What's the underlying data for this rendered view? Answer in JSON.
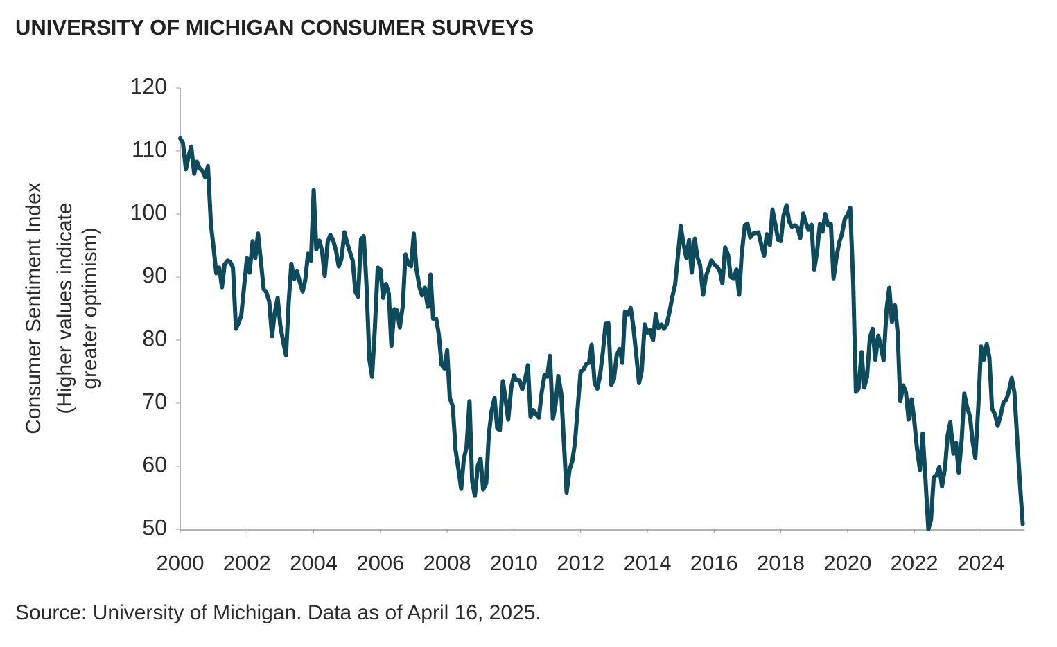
{
  "chart_data": {
    "type": "line",
    "title": "UNIVERSITY OF MICHIGAN CONSUMER SURVEYS",
    "y_label": [
      "Consumer Sentiment Index",
      "(Higher values indicate",
      "greater optimism)"
    ],
    "source": "Source: University of Michigan. Data as of April 16, 2025.",
    "xlim": [
      2000,
      2025.3
    ],
    "xticks": [
      2000,
      2002,
      2004,
      2006,
      2008,
      2010,
      2012,
      2014,
      2016,
      2018,
      2020,
      2022,
      2024
    ],
    "ylim": [
      50,
      120
    ],
    "yticks": [
      50,
      60,
      70,
      80,
      90,
      100,
      110,
      120
    ],
    "grid": false,
    "x": [
      2000,
      2000.08,
      2000.17,
      2000.25,
      2000.33,
      2000.42,
      2000.5,
      2000.58,
      2000.67,
      2000.75,
      2000.83,
      2000.92,
      2001,
      2001.08,
      2001.17,
      2001.25,
      2001.33,
      2001.42,
      2001.5,
      2001.58,
      2001.67,
      2001.75,
      2001.83,
      2001.92,
      2002,
      2002.08,
      2002.17,
      2002.25,
      2002.33,
      2002.42,
      2002.5,
      2002.58,
      2002.67,
      2002.75,
      2002.83,
      2002.92,
      2003,
      2003.08,
      2003.17,
      2003.25,
      2003.33,
      2003.42,
      2003.5,
      2003.58,
      2003.67,
      2003.75,
      2003.83,
      2003.92,
      2004,
      2004.08,
      2004.17,
      2004.25,
      2004.33,
      2004.42,
      2004.5,
      2004.58,
      2004.67,
      2004.75,
      2004.83,
      2004.92,
      2005,
      2005.08,
      2005.17,
      2005.25,
      2005.33,
      2005.42,
      2005.5,
      2005.58,
      2005.67,
      2005.75,
      2005.83,
      2005.92,
      2006,
      2006.08,
      2006.17,
      2006.25,
      2006.33,
      2006.42,
      2006.5,
      2006.58,
      2006.67,
      2006.75,
      2006.83,
      2006.92,
      2007,
      2007.08,
      2007.17,
      2007.25,
      2007.33,
      2007.42,
      2007.5,
      2007.58,
      2007.67,
      2007.75,
      2007.83,
      2007.92,
      2008,
      2008.08,
      2008.17,
      2008.25,
      2008.33,
      2008.42,
      2008.5,
      2008.58,
      2008.67,
      2008.75,
      2008.83,
      2008.92,
      2009,
      2009.08,
      2009.17,
      2009.25,
      2009.33,
      2009.42,
      2009.5,
      2009.58,
      2009.67,
      2009.75,
      2009.83,
      2009.92,
      2010,
      2010.08,
      2010.17,
      2010.25,
      2010.33,
      2010.42,
      2010.5,
      2010.58,
      2010.67,
      2010.75,
      2010.83,
      2010.92,
      2011,
      2011.08,
      2011.17,
      2011.25,
      2011.33,
      2011.42,
      2011.5,
      2011.58,
      2011.67,
      2011.75,
      2011.83,
      2011.92,
      2012,
      2012.08,
      2012.17,
      2012.25,
      2012.33,
      2012.42,
      2012.5,
      2012.58,
      2012.67,
      2012.75,
      2012.83,
      2012.92,
      2013,
      2013.08,
      2013.17,
      2013.25,
      2013.33,
      2013.42,
      2013.5,
      2013.58,
      2013.67,
      2013.75,
      2013.83,
      2013.92,
      2014,
      2014.08,
      2014.17,
      2014.25,
      2014.33,
      2014.42,
      2014.5,
      2014.58,
      2014.67,
      2014.75,
      2014.83,
      2014.92,
      2015,
      2015.08,
      2015.17,
      2015.25,
      2015.33,
      2015.42,
      2015.5,
      2015.58,
      2015.67,
      2015.75,
      2015.83,
      2015.92,
      2016,
      2016.08,
      2016.17,
      2016.25,
      2016.33,
      2016.42,
      2016.5,
      2016.58,
      2016.67,
      2016.75,
      2016.83,
      2016.92,
      2017,
      2017.08,
      2017.17,
      2017.25,
      2017.33,
      2017.42,
      2017.5,
      2017.58,
      2017.67,
      2017.75,
      2017.83,
      2017.92,
      2018,
      2018.08,
      2018.17,
      2018.25,
      2018.33,
      2018.42,
      2018.5,
      2018.58,
      2018.67,
      2018.75,
      2018.83,
      2018.92,
      2019,
      2019.08,
      2019.17,
      2019.25,
      2019.33,
      2019.42,
      2019.5,
      2019.58,
      2019.67,
      2019.75,
      2019.83,
      2019.92,
      2020,
      2020.08,
      2020.17,
      2020.25,
      2020.33,
      2020.42,
      2020.5,
      2020.58,
      2020.67,
      2020.75,
      2020.83,
      2020.92,
      2021,
      2021.08,
      2021.17,
      2021.25,
      2021.33,
      2021.42,
      2021.5,
      2021.58,
      2021.67,
      2021.75,
      2021.83,
      2021.92,
      2022,
      2022.08,
      2022.17,
      2022.25,
      2022.33,
      2022.42,
      2022.5,
      2022.58,
      2022.67,
      2022.75,
      2022.83,
      2022.92,
      2023,
      2023.08,
      2023.17,
      2023.25,
      2023.33,
      2023.42,
      2023.5,
      2023.58,
      2023.67,
      2023.75,
      2023.83,
      2023.92,
      2024,
      2024.08,
      2024.17,
      2024.25,
      2024.33,
      2024.42,
      2024.5,
      2024.58,
      2024.67,
      2024.75,
      2024.83,
      2024.92,
      2025,
      2025.08,
      2025.17,
      2025.25
    ],
    "series": [
      {
        "color": "#0c4a5c",
        "values": [
          112.0,
          111.3,
          107.1,
          109.2,
          110.7,
          106.4,
          108.3,
          107.3,
          106.8,
          105.8,
          107.6,
          98.4,
          94.7,
          90.6,
          91.5,
          88.4,
          92.0,
          92.6,
          92.4,
          91.5,
          81.8,
          82.7,
          83.9,
          88.8,
          93.0,
          90.7,
          95.7,
          93.0,
          96.9,
          92.4,
          88.1,
          87.6,
          86.1,
          80.6,
          84.2,
          86.7,
          82.4,
          79.9,
          77.6,
          86.0,
          92.1,
          89.7,
          90.9,
          89.3,
          87.7,
          89.6,
          93.7,
          92.6,
          103.8,
          94.4,
          95.8,
          94.2,
          90.2,
          95.6,
          96.7,
          95.9,
          94.2,
          91.7,
          92.8,
          97.1,
          95.5,
          94.1,
          92.6,
          87.7,
          86.9,
          96.0,
          96.5,
          89.1,
          76.9,
          74.2,
          81.6,
          91.5,
          91.2,
          86.7,
          88.9,
          87.4,
          79.1,
          84.9,
          84.7,
          82.0,
          85.4,
          93.6,
          92.1,
          91.7,
          96.9,
          91.3,
          88.4,
          87.1,
          88.3,
          85.3,
          90.4,
          83.4,
          83.4,
          80.9,
          76.1,
          75.5,
          78.4,
          70.8,
          69.5,
          62.6,
          59.8,
          56.4,
          61.2,
          63.0,
          70.3,
          57.6,
          55.3,
          60.1,
          61.2,
          56.3,
          57.3,
          65.1,
          68.7,
          70.8,
          66.0,
          65.7,
          73.5,
          70.6,
          67.4,
          72.5,
          74.4,
          73.6,
          73.6,
          72.2,
          73.6,
          76.0,
          67.8,
          68.9,
          68.2,
          67.7,
          71.6,
          74.5,
          74.2,
          77.5,
          67.5,
          69.8,
          74.3,
          71.5,
          63.7,
          55.8,
          59.5,
          60.8,
          63.7,
          69.9,
          75.0,
          75.3,
          76.2,
          76.4,
          79.3,
          73.2,
          72.3,
          74.3,
          78.3,
          82.6,
          82.7,
          72.9,
          73.8,
          77.6,
          78.6,
          76.4,
          84.5,
          84.1,
          85.1,
          82.1,
          77.5,
          73.2,
          75.1,
          82.5,
          81.2,
          81.6,
          80.0,
          84.1,
          81.9,
          82.5,
          81.8,
          82.5,
          84.6,
          86.9,
          88.8,
          93.6,
          98.1,
          95.4,
          93.0,
          95.9,
          90.7,
          96.1,
          93.1,
          91.9,
          87.2,
          90.0,
          91.3,
          92.6,
          92.0,
          91.7,
          91.0,
          89.0,
          94.7,
          93.5,
          90.0,
          89.8,
          91.2,
          87.2,
          93.8,
          98.2,
          98.5,
          96.3,
          96.9,
          97.0,
          97.1,
          95.0,
          93.4,
          96.8,
          95.1,
          100.7,
          98.5,
          95.9,
          95.7,
          99.7,
          101.4,
          98.8,
          98.0,
          98.2,
          97.9,
          96.2,
          100.1,
          98.6,
          97.5,
          98.3,
          91.2,
          93.8,
          98.4,
          97.2,
          100.0,
          98.2,
          98.4,
          89.8,
          93.2,
          95.5,
          96.8,
          99.3,
          99.8,
          101.0,
          89.1,
          71.8,
          72.3,
          78.1,
          72.5,
          74.1,
          80.4,
          81.8,
          76.9,
          80.7,
          79.0,
          76.8,
          84.9,
          88.3,
          82.9,
          85.5,
          81.2,
          70.3,
          72.8,
          71.7,
          67.4,
          70.6,
          67.2,
          62.8,
          59.4,
          65.2,
          58.4,
          50.0,
          51.5,
          58.2,
          58.6,
          59.9,
          56.8,
          59.7,
          64.9,
          67.0,
          62.0,
          63.7,
          59.0,
          64.2,
          71.5,
          69.4,
          67.9,
          63.8,
          61.3,
          69.7,
          79.0,
          76.9,
          79.4,
          77.2,
          69.1,
          68.2,
          66.4,
          67.9,
          70.1,
          70.5,
          71.8,
          74.0,
          71.7,
          64.7,
          57.0,
          50.8
        ]
      }
    ]
  }
}
